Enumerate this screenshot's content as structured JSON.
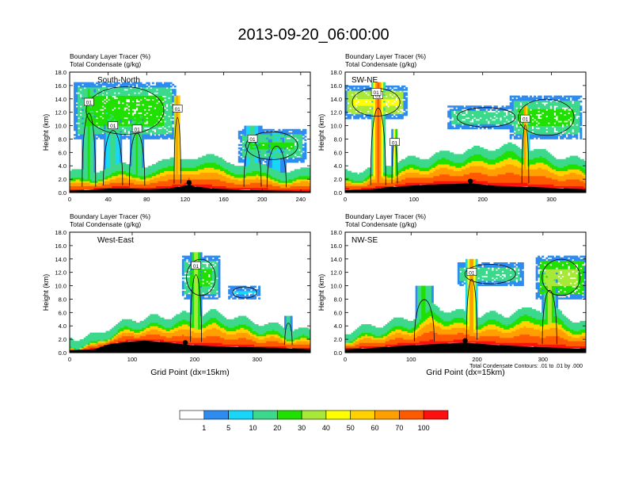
{
  "page_title": "2013-09-20_06:00:00",
  "colors": {
    "levels": [
      "#ffffff",
      "#2e8cf0",
      "#18d6f8",
      "#3cd98c",
      "#20e000",
      "#a8e838",
      "#ffff00",
      "#ffd200",
      "#ffa000",
      "#ff5a00",
      "#ff1010"
    ],
    "contour": "#000000",
    "terrain": "#000000"
  },
  "colorbar": {
    "labels": [
      "1",
      "5",
      "10",
      "20",
      "30",
      "40",
      "50",
      "60",
      "70",
      "100"
    ]
  },
  "contour_note": "Total Condensate Contours: .01 to .01 by .000",
  "chart_data": [
    {
      "type": "heatmap",
      "panel": "South-North",
      "title_lines": [
        "Boundary Layer Tracer    (%)",
        "Total Condensate    (g/kg)"
      ],
      "ylabel": "Height (km)",
      "xlabel": "",
      "xlim": [
        0,
        250
      ],
      "ylim": [
        0,
        18
      ],
      "xticks": [
        0,
        40,
        80,
        120,
        160,
        200,
        240
      ],
      "yticks": [
        0,
        2,
        4,
        6,
        8,
        10,
        12,
        14,
        16,
        18
      ],
      "ytick_labels": [
        "0.0",
        "2.0",
        "4.0",
        "6.0",
        "8.0",
        "10.0",
        "12.0",
        "14.0",
        "16.0",
        "18.0"
      ],
      "marker_x": 124,
      "contour_labels": [
        "01",
        "01",
        "01",
        "01",
        "01"
      ],
      "terrain": [
        [
          0,
          0.3
        ],
        [
          20,
          0.4
        ],
        [
          40,
          0.6
        ],
        [
          60,
          0.6
        ],
        [
          80,
          0.5
        ],
        [
          100,
          0.6
        ],
        [
          110,
          0.8
        ],
        [
          118,
          1.0
        ],
        [
          124,
          1.2
        ],
        [
          130,
          0.9
        ],
        [
          150,
          0.6
        ],
        [
          180,
          0.4
        ],
        [
          210,
          0.3
        ],
        [
          250,
          0.2
        ]
      ],
      "bl_top": [
        [
          0,
          1.6
        ],
        [
          20,
          2.2
        ],
        [
          40,
          2.6
        ],
        [
          70,
          2.9
        ],
        [
          100,
          3.3
        ],
        [
          120,
          4.2
        ],
        [
          140,
          4.2
        ],
        [
          165,
          3.5
        ],
        [
          200,
          2.6
        ],
        [
          230,
          2.2
        ],
        [
          250,
          2.0
        ]
      ],
      "plumes": [
        {
          "x": 20,
          "w": 14,
          "top": 15.5,
          "v": 4
        },
        {
          "x": 45,
          "w": 20,
          "top": 12.0,
          "v": 3
        },
        {
          "x": 70,
          "w": 16,
          "top": 11.5,
          "v": 4
        },
        {
          "x": 112,
          "w": 7,
          "top": 14.5,
          "v": 9
        },
        {
          "x": 190,
          "w": 18,
          "top": 10.0,
          "v": 3
        },
        {
          "x": 215,
          "w": 20,
          "top": 9.0,
          "v": 2
        }
      ],
      "anvils": [
        {
          "x0": 5,
          "x1": 110,
          "z0": 8.0,
          "z1": 16.5,
          "v": 3
        },
        {
          "x0": 175,
          "x1": 245,
          "z0": 4.5,
          "z1": 9.5,
          "v": 3
        }
      ]
    },
    {
      "type": "heatmap",
      "panel": "SW-NE",
      "title_lines": [
        "Boundary Layer Tracer    (%)",
        "Total Condensate    (g/kg)"
      ],
      "ylabel": "Height (km)",
      "xlabel": "",
      "xlim": [
        0,
        350
      ],
      "ylim": [
        0,
        18
      ],
      "xticks": [
        0,
        100,
        200,
        300
      ],
      "yticks": [
        0,
        2,
        4,
        6,
        8,
        10,
        12,
        14,
        16,
        18
      ],
      "ytick_labels": [
        "0.0",
        "2.0",
        "4.0",
        "6.0",
        "8.0",
        "10.0",
        "12.0",
        "14.0",
        "16.0",
        "18.0"
      ],
      "marker_x": 182,
      "contour_labels": [
        "01",
        "01",
        "01",
        "01"
      ],
      "terrain": [
        [
          0,
          0.4
        ],
        [
          40,
          0.5
        ],
        [
          60,
          0.8
        ],
        [
          90,
          1.0
        ],
        [
          120,
          1.2
        ],
        [
          160,
          1.3
        ],
        [
          182,
          1.4
        ],
        [
          220,
          1.0
        ],
        [
          260,
          0.9
        ],
        [
          300,
          0.7
        ],
        [
          350,
          0.5
        ]
      ],
      "bl_top": [
        [
          0,
          1.8
        ],
        [
          40,
          2.5
        ],
        [
          80,
          3.5
        ],
        [
          130,
          4.5
        ],
        [
          170,
          5.0
        ],
        [
          210,
          5.5
        ],
        [
          250,
          5.8
        ],
        [
          300,
          4.5
        ],
        [
          350,
          3.5
        ]
      ],
      "plumes": [
        {
          "x": 48,
          "w": 22,
          "top": 16.5,
          "v": 9
        },
        {
          "x": 72,
          "w": 8,
          "top": 9.5,
          "v": 6
        },
        {
          "x": 262,
          "w": 10,
          "top": 13.0,
          "v": 9
        }
      ],
      "anvils": [
        {
          "x0": 0,
          "x1": 90,
          "z0": 11.0,
          "z1": 16.0,
          "v": 5
        },
        {
          "x0": 150,
          "x1": 260,
          "z0": 9.5,
          "z1": 13.0,
          "v": 3
        },
        {
          "x0": 240,
          "x1": 345,
          "z0": 8.0,
          "z1": 14.5,
          "v": 3
        }
      ]
    },
    {
      "type": "heatmap",
      "panel": "West-East",
      "title_lines": [
        "Boundary Layer Tracer    (%)",
        "Total Condensate    (g/kg)"
      ],
      "ylabel": "Height (km)",
      "xlabel": "Grid Point (dx=15km)",
      "xlim": [
        0,
        385
      ],
      "ylim": [
        0,
        18
      ],
      "xticks": [
        0,
        100,
        200,
        300
      ],
      "yticks": [
        0,
        2,
        4,
        6,
        8,
        10,
        12,
        14,
        16,
        18
      ],
      "ytick_labels": [
        "0.0",
        "2.0",
        "4.0",
        "6.0",
        "8.0",
        "10.0",
        "12.0",
        "14.0",
        "16.0",
        "18.0"
      ],
      "marker_x": 185,
      "contour_labels": [
        "01"
      ],
      "terrain": [
        [
          0,
          0.4
        ],
        [
          40,
          0.5
        ],
        [
          60,
          1.2
        ],
        [
          90,
          1.6
        ],
        [
          120,
          1.8
        ],
        [
          160,
          1.5
        ],
        [
          185,
          1.2
        ],
        [
          220,
          1.0
        ],
        [
          260,
          0.9
        ],
        [
          300,
          0.8
        ],
        [
          340,
          0.7
        ],
        [
          385,
          0.5
        ]
      ],
      "bl_top": [
        [
          0,
          1.0
        ],
        [
          40,
          1.3
        ],
        [
          60,
          2.5
        ],
        [
          100,
          3.8
        ],
        [
          150,
          4.2
        ],
        [
          190,
          4.5
        ],
        [
          230,
          4.8
        ],
        [
          270,
          4.0
        ],
        [
          320,
          3.0
        ],
        [
          385,
          2.0
        ]
      ],
      "plumes": [
        {
          "x": 202,
          "w": 18,
          "top": 15.0,
          "v": 6
        },
        {
          "x": 350,
          "w": 12,
          "top": 5.5,
          "v": 4
        }
      ],
      "anvils": [
        {
          "x0": 180,
          "x1": 240,
          "z0": 8.0,
          "z1": 14.5,
          "v": 3
        },
        {
          "x0": 255,
          "x1": 305,
          "z0": 8.0,
          "z1": 10.0,
          "v": 2
        }
      ]
    },
    {
      "type": "heatmap",
      "panel": "NW-SE",
      "title_lines": [
        "Boundary Layer Tracer    (%)",
        "Total Condensate    (g/kg)"
      ],
      "ylabel": "Height (km)",
      "xlabel": "Grid Point (dx=15km)",
      "xlim": [
        0,
        365
      ],
      "ylim": [
        0,
        18
      ],
      "xticks": [
        0,
        100,
        200,
        300
      ],
      "yticks": [
        0,
        2,
        4,
        6,
        8,
        10,
        12,
        14,
        16,
        18
      ],
      "ytick_labels": [
        "0.0",
        "2.0",
        "4.0",
        "6.0",
        "8.0",
        "10.0",
        "12.0",
        "14.0",
        "16.0",
        "18.0"
      ],
      "marker_x": 182,
      "contour_labels": [
        "01"
      ],
      "terrain": [
        [
          0,
          0.5
        ],
        [
          40,
          0.7
        ],
        [
          80,
          1.0
        ],
        [
          120,
          1.2
        ],
        [
          160,
          1.4
        ],
        [
          182,
          1.5
        ],
        [
          220,
          1.2
        ],
        [
          260,
          1.0
        ],
        [
          300,
          0.8
        ],
        [
          365,
          0.6
        ]
      ],
      "bl_top": [
        [
          0,
          2.0
        ],
        [
          50,
          3.0
        ],
        [
          100,
          4.0
        ],
        [
          130,
          6.0
        ],
        [
          160,
          5.0
        ],
        [
          200,
          4.5
        ],
        [
          240,
          4.5
        ],
        [
          290,
          5.5
        ],
        [
          320,
          5.0
        ],
        [
          365,
          3.0
        ]
      ],
      "plumes": [
        {
          "x": 192,
          "w": 16,
          "top": 14.0,
          "v": 9
        },
        {
          "x": 120,
          "w": 30,
          "top": 10.0,
          "v": 4
        },
        {
          "x": 310,
          "w": 22,
          "top": 12.0,
          "v": 5
        }
      ],
      "anvils": [
        {
          "x0": 170,
          "x1": 270,
          "z0": 10.0,
          "z1": 13.5,
          "v": 3
        },
        {
          "x0": 290,
          "x1": 365,
          "z0": 8.0,
          "z1": 14.5,
          "v": 4
        }
      ]
    }
  ]
}
